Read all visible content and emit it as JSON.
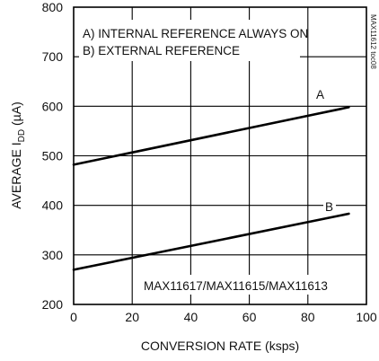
{
  "chart_data": {
    "type": "line",
    "tag": "MAX11612 toc08",
    "xlabel": "CONVERSION RATE (ksps)",
    "ylabel": {
      "prefix": "AVERAGE I",
      "sub": "DD",
      "suffix": " (µA)"
    },
    "xlim": [
      0,
      100
    ],
    "ylim": [
      200,
      800
    ],
    "x_ticks": [
      "0",
      "20",
      "40",
      "60",
      "80",
      "100"
    ],
    "y_ticks": [
      "200",
      "300",
      "400",
      "500",
      "600",
      "700",
      "800"
    ],
    "grid": true,
    "annotations": [
      "A) INTERNAL REFERENCE ALWAYS ON",
      "B) EXTERNAL REFERENCE",
      "MAX11617/MAX11615/MAX11613"
    ],
    "series": [
      {
        "name": "A",
        "x": [
          0,
          94
        ],
        "y": [
          482,
          598
        ]
      },
      {
        "name": "B",
        "x": [
          0,
          94
        ],
        "y": [
          270,
          383
        ]
      }
    ]
  }
}
